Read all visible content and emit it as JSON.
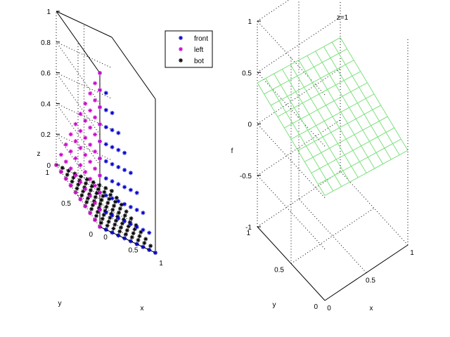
{
  "colors": {
    "front": "#0000cc",
    "left": "#cc00cc",
    "bot": "#000000",
    "mesh": "#7fe07f"
  },
  "chart_data": [
    {
      "type": "scatter",
      "title": "",
      "xlabel": "x",
      "ylabel": "y",
      "zlabel": "z",
      "xlim": [
        0,
        1
      ],
      "ylim": [
        0,
        1
      ],
      "zlim": [
        0,
        1
      ],
      "xticks": [
        "0",
        "0.5",
        "1"
      ],
      "yticks": [
        "0",
        "0.5",
        "1"
      ],
      "zticks": [
        "0",
        "0.2",
        "0.4",
        "0.6",
        "0.8",
        "1"
      ],
      "grid": true,
      "legend_position": "top-right",
      "series": [
        {
          "name": "front",
          "marker": "*",
          "color": "#0000cc",
          "description": "points on face y = 0 (x, z in [0,1], z <= 1-x)"
        },
        {
          "name": "left",
          "marker": "*",
          "color": "#cc00cc",
          "description": "points on face x = 0 (y, z in [0,1], z <= 1-y)"
        },
        {
          "name": "bot",
          "marker": "*",
          "color": "#000000",
          "description": "points on face z = 0 (x, y in [0,1])"
        }
      ]
    },
    {
      "type": "surface",
      "title": "z=1",
      "xlabel": "x",
      "ylabel": "y",
      "zlabel": "f",
      "xlim": [
        0,
        1
      ],
      "ylim": [
        0,
        1
      ],
      "zlim": [
        -1,
        1
      ],
      "xticks": [
        "0",
        "0.5",
        "1"
      ],
      "yticks": [
        "0",
        "0.5",
        "1"
      ],
      "zticks": [
        "-1",
        "-0.5",
        "0",
        "0.5",
        "1"
      ],
      "grid": true,
      "mesh_color": "#7fe07f",
      "grid_size": 11,
      "surface": {
        "f_at_x0_y0": 0.02,
        "f_at_x1_y0": -0.08,
        "f_at_x0_y1": 0.4,
        "f_at_x1_y1": 0.3
      }
    }
  ]
}
